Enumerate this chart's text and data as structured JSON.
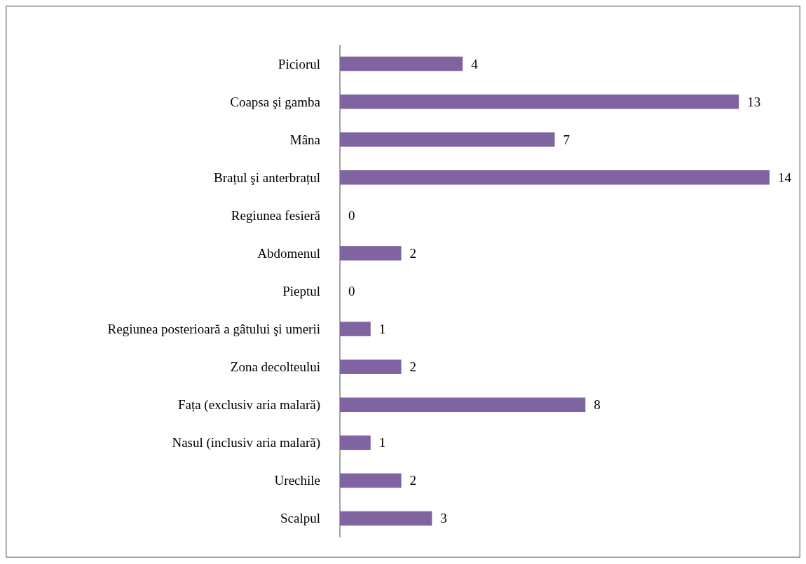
{
  "chart_data": {
    "type": "bar",
    "orientation": "horizontal",
    "categories": [
      "Piciorul",
      "Coapsa şi gamba",
      "Mâna",
      "Brațul şi anterbrațul",
      "Regiunea fesieră",
      "Abdomenul",
      "Pieptul",
      "Regiunea posterioară a gâtului şi umerii",
      "Zona decolteului",
      "Fața (exclusiv aria malară)",
      "Nasul (inclusiv aria malară)",
      "Urechile",
      "Scalpul"
    ],
    "values": [
      4,
      13,
      7,
      14,
      0,
      2,
      0,
      1,
      2,
      8,
      1,
      2,
      3
    ],
    "color": "#8064a2",
    "data_labels": true
  }
}
